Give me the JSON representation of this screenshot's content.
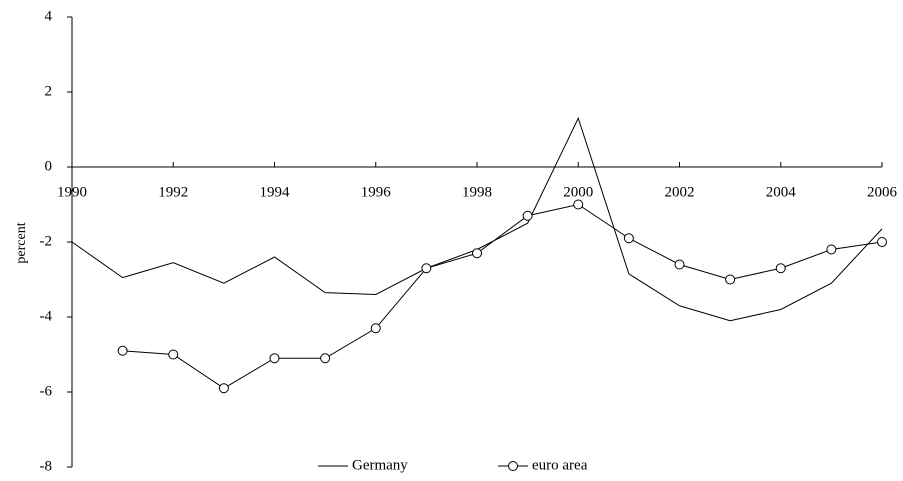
{
  "chart_data": {
    "type": "line",
    "y_label": "percent",
    "x": [
      1990,
      1991,
      1992,
      1993,
      1994,
      1995,
      1996,
      1997,
      1998,
      1999,
      2000,
      2001,
      2002,
      2003,
      2004,
      2005,
      2006
    ],
    "series": [
      {
        "name": "Germany",
        "color": "#000000",
        "marker": "none",
        "values": [
          -2.0,
          -2.95,
          -2.55,
          -3.1,
          -2.4,
          -3.35,
          -3.4,
          -2.7,
          -2.2,
          -1.5,
          1.3,
          -2.85,
          -3.7,
          -4.1,
          -3.8,
          -3.1,
          -1.65
        ]
      },
      {
        "name": "euro area",
        "color": "#000000",
        "marker": "circle",
        "values": [
          null,
          -4.9,
          -5.0,
          -5.9,
          -5.1,
          -5.1,
          -4.3,
          -2.7,
          -2.3,
          -1.3,
          -1.0,
          -1.9,
          -2.6,
          -3.0,
          -2.7,
          -2.2,
          -2.0
        ]
      }
    ],
    "xlim": [
      1990,
      2006
    ],
    "xticks": [
      1990,
      1992,
      1994,
      1996,
      1998,
      2000,
      2002,
      2004,
      2006
    ],
    "ylim": [
      -8,
      4
    ],
    "yticks": [
      -8,
      -6,
      -4,
      -2,
      0,
      2,
      4
    ],
    "grid": false,
    "legend": "bottom"
  }
}
